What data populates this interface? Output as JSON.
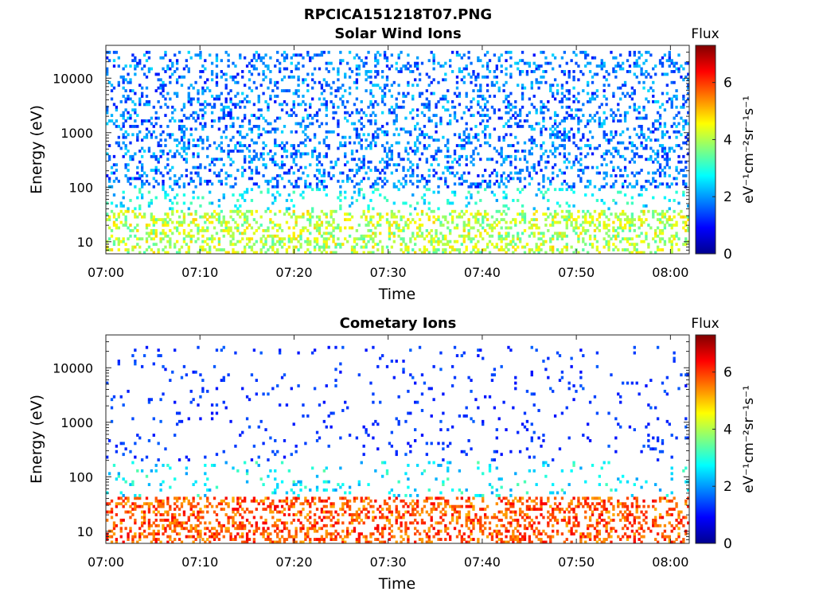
{
  "figure": {
    "title": "RPCICA151218T07.PNG",
    "background": "#ffffff"
  },
  "chart_data": [
    {
      "type": "heatmap",
      "title": "Solar Wind Ions",
      "xlabel": "Time",
      "ylabel": "Energy (eV)",
      "x_range": [
        "07:00",
        "08:02"
      ],
      "x_ticks": [
        "07:00",
        "07:10",
        "07:20",
        "07:30",
        "07:40",
        "07:50",
        "08:00"
      ],
      "y_scale": "log",
      "y_range": [
        6,
        40000
      ],
      "y_ticks": [
        10,
        100,
        1000,
        10000
      ],
      "y_tick_labels": [
        "10",
        "100",
        "1000",
        "10000"
      ],
      "colorbar": {
        "label": "Flux",
        "unit": "eV⁻¹cm⁻²sr⁻¹s⁻¹",
        "range": [
          0,
          7.3
        ],
        "ticks": [
          0,
          2,
          4,
          6
        ],
        "tick_labels": [
          "0",
          "2",
          "4",
          "6"
        ],
        "colormap": "jet"
      },
      "distribution": {
        "noise_band_eV": [
          100,
          30000
        ],
        "noise_level": [
          1.0,
          2.5
        ],
        "low_band_eV": [
          6,
          40
        ],
        "low_level": [
          2.5,
          5.5
        ],
        "burst_minutes": [
          1.2,
          3.0,
          5.8,
          8.8,
          9.5,
          11.8,
          13.2,
          15.2,
          18.5,
          21.0,
          22.5,
          25.5,
          28.2,
          30.0,
          32.3,
          34.8,
          38.5,
          42.5,
          44.8,
          47.3,
          51.0,
          53.8,
          57.3,
          60.5
        ],
        "burst_peak_level": [
          4.5,
          6.3
        ]
      },
      "grid": false,
      "legend": "none"
    },
    {
      "type": "heatmap",
      "title": "Cometary Ions",
      "xlabel": "Time",
      "ylabel": "Energy (eV)",
      "x_range": [
        "07:00",
        "08:02"
      ],
      "x_ticks": [
        "07:00",
        "07:10",
        "07:20",
        "07:30",
        "07:40",
        "07:50",
        "08:00"
      ],
      "y_scale": "log",
      "y_range": [
        6,
        40000
      ],
      "y_ticks": [
        10,
        100,
        1000,
        10000
      ],
      "y_tick_labels": [
        "10",
        "100",
        "1000",
        "10000"
      ],
      "colorbar": {
        "label": "Flux",
        "unit": "eV⁻¹cm⁻²sr⁻¹s⁻¹",
        "range": [
          0,
          7.3
        ],
        "ticks": [
          0,
          2,
          4,
          6
        ],
        "tick_labels": [
          "0",
          "2",
          "4",
          "6"
        ],
        "colormap": "jet"
      },
      "distribution": {
        "noise_band_eV": [
          200,
          25000
        ],
        "noise_level": [
          1.0,
          1.6
        ],
        "low_band_eV": [
          6,
          45
        ],
        "low_level": [
          4.5,
          7.0
        ],
        "burst_minutes": [
          1.5,
          5.5,
          9.0,
          12.0,
          14.8,
          18.5,
          22.0,
          25.5,
          28.2,
          31.0,
          32.8,
          34.8,
          38.0,
          40.5,
          44.0,
          47.0,
          49.0,
          51.0,
          54.0,
          57.0,
          60.0
        ],
        "burst_peak_level": [
          6.0,
          7.3
        ]
      },
      "grid": false,
      "legend": "none"
    }
  ]
}
